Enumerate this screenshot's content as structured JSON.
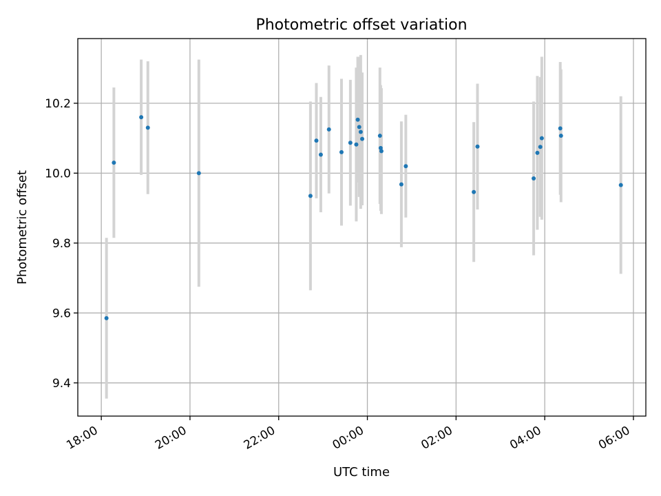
{
  "chart_data": {
    "type": "scatter",
    "title": "Photometric offset variation",
    "xlabel": "UTC time",
    "ylabel": "Photometric offset",
    "x_is_time": true,
    "x_tick_labels": [
      "18:00",
      "20:00",
      "22:00",
      "00:00",
      "02:00",
      "04:00",
      "06:00"
    ],
    "x_ticks_hours": [
      18,
      20,
      22,
      24,
      26,
      28,
      30
    ],
    "xlim_hours": [
      17.47,
      30.28
    ],
    "y_ticks": [
      9.4,
      9.6,
      9.8,
      10.0,
      10.2
    ],
    "ylim": [
      9.305,
      10.385
    ],
    "grid": true,
    "point_color": "#1f77b4",
    "errorbar_color": "#d3d3d3",
    "series": [
      {
        "points": [
          {
            "t": "18:07",
            "y": 9.585,
            "err": 0.23
          },
          {
            "t": "18:17",
            "y": 10.03,
            "err": 0.215
          },
          {
            "t": "18:54",
            "y": 10.16,
            "err": 0.165
          },
          {
            "t": "19:03",
            "y": 10.13,
            "err": 0.19
          },
          {
            "t": "20:12",
            "y": 10.0,
            "err": 0.325
          },
          {
            "t": "22:43",
            "y": 9.935,
            "err": 0.27
          },
          {
            "t": "22:51",
            "y": 10.093,
            "err": 0.165
          },
          {
            "t": "22:57",
            "y": 10.053,
            "err": 0.165
          },
          {
            "t": "23:08",
            "y": 10.125,
            "err": 0.183
          },
          {
            "t": "23:25",
            "y": 10.06,
            "err": 0.21
          },
          {
            "t": "23:37",
            "y": 10.087,
            "err": 0.18
          },
          {
            "t": "23:45",
            "y": 10.082,
            "err": 0.22
          },
          {
            "t": "23:47",
            "y": 10.153,
            "err": 0.18
          },
          {
            "t": "23:49",
            "y": 10.132,
            "err": 0.2
          },
          {
            "t": "23:51",
            "y": 10.118,
            "err": 0.22
          },
          {
            "t": "23:53",
            "y": 10.098,
            "err": 0.19
          },
          {
            "t": "00:17",
            "y": 10.107,
            "err": 0.195
          },
          {
            "t": "00:18",
            "y": 10.072,
            "err": 0.18
          },
          {
            "t": "00:19",
            "y": 10.063,
            "err": 0.18
          },
          {
            "t": "00:46",
            "y": 9.968,
            "err": 0.18
          },
          {
            "t": "00:52",
            "y": 10.02,
            "err": 0.147
          },
          {
            "t": "02:24",
            "y": 9.946,
            "err": 0.2
          },
          {
            "t": "02:29",
            "y": 10.076,
            "err": 0.18
          },
          {
            "t": "03:45",
            "y": 9.985,
            "err": 0.22
          },
          {
            "t": "03:50",
            "y": 10.058,
            "err": 0.22
          },
          {
            "t": "03:54",
            "y": 10.075,
            "err": 0.2
          },
          {
            "t": "03:56",
            "y": 10.1,
            "err": 0.233
          },
          {
            "t": "04:21",
            "y": 10.128,
            "err": 0.19
          },
          {
            "t": "04:22",
            "y": 10.107,
            "err": 0.19
          },
          {
            "t": "05:43",
            "y": 9.966,
            "err": 0.254
          }
        ]
      }
    ]
  }
}
